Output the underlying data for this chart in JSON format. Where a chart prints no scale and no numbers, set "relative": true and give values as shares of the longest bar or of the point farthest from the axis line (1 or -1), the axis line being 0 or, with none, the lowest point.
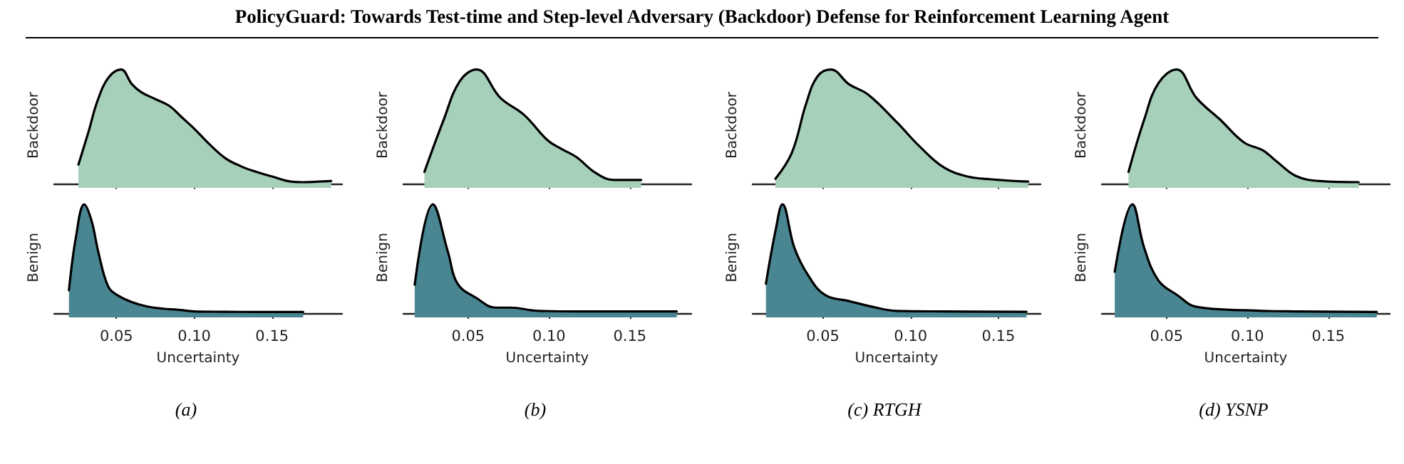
{
  "chart_data": [
    {
      "type": "area",
      "title": "PolicyGuard: Towards Test-time and Step-level Adversary (Backdoor) Defense for Reinforcement Learning Agent",
      "ylabel": "Backdoor",
      "relative": true,
      "tick_labels": false,
      "xlim": [
        0.01,
        0.195
      ],
      "xticks": [
        {
          "value": 0.05,
          "label": null
        },
        {
          "value": 0.1,
          "label": null
        },
        {
          "value": 0.15,
          "label": null
        }
      ],
      "series": [
        {
          "color": "#a6d0b9",
          "x": [
            0.0256,
            0.032,
            0.038,
            0.045,
            0.053,
            0.06,
            0.066,
            0.075,
            0.084,
            0.092,
            0.1,
            0.11,
            0.12,
            0.13,
            0.14,
            0.15,
            0.16,
            0.17,
            0.18,
            0.188
          ],
          "values": [
            0.165,
            0.45,
            0.73,
            0.93,
            1.0,
            0.87,
            0.8,
            0.74,
            0.68,
            0.58,
            0.48,
            0.34,
            0.22,
            0.15,
            0.1,
            0.06,
            0.02,
            0.01,
            0.015,
            0.02
          ]
        }
      ]
    },
    {
      "type": "area",
      "ylabel": "Benign",
      "xlabel": "Uncertainty",
      "relative": true,
      "tick_labels": "x",
      "annotations": [
        "(a)"
      ],
      "xlim": [
        0.01,
        0.195
      ],
      "xticks": [
        {
          "value": 0.05,
          "label": "0.05"
        },
        {
          "value": 0.1,
          "label": "0.10"
        },
        {
          "value": 0.15,
          "label": "0.15"
        }
      ],
      "series": [
        {
          "color": "#4a8592",
          "x": [
            0.0195,
            0.024,
            0.0293,
            0.034,
            0.0384,
            0.0445,
            0.05,
            0.06,
            0.07,
            0.08,
            0.09,
            0.1,
            0.12,
            0.14,
            0.17
          ],
          "values": [
            0.21,
            0.7,
            1.0,
            0.85,
            0.56,
            0.25,
            0.17,
            0.1,
            0.06,
            0.04,
            0.03,
            0.015,
            0.012,
            0.01,
            0.01
          ]
        }
      ]
    },
    {
      "type": "area",
      "ylabel": "Backdoor",
      "relative": true,
      "tick_labels": false,
      "xlim": [
        0.01,
        0.188
      ],
      "xticks": [
        {
          "value": 0.05,
          "label": null
        },
        {
          "value": 0.1,
          "label": null
        },
        {
          "value": 0.15,
          "label": null
        }
      ],
      "series": [
        {
          "color": "#a6d0b9",
          "x": [
            0.023,
            0.0347,
            0.045,
            0.0553,
            0.07,
            0.0847,
            0.099,
            0.108,
            0.117,
            0.129,
            0.14,
            0.157
          ],
          "values": [
            0.1,
            0.55,
            0.9,
            1.0,
            0.75,
            0.6,
            0.38,
            0.3,
            0.23,
            0.09,
            0.03,
            0.03
          ]
        }
      ]
    },
    {
      "type": "area",
      "ylabel": "Benign",
      "xlabel": "Uncertainty",
      "relative": true,
      "tick_labels": "x",
      "annotations": [
        "(b)"
      ],
      "xlim": [
        0.01,
        0.188
      ],
      "xticks": [
        {
          "value": 0.05,
          "label": "0.05"
        },
        {
          "value": 0.1,
          "label": "0.10"
        },
        {
          "value": 0.15,
          "label": "0.15"
        }
      ],
      "series": [
        {
          "color": "#4a8592",
          "x": [
            0.017,
            0.0282,
            0.0376,
            0.0435,
            0.055,
            0.067,
            0.076,
            0.0935,
            0.12,
            0.15,
            0.179
          ],
          "values": [
            0.26,
            1.0,
            0.56,
            0.27,
            0.14,
            0.05,
            0.05,
            0.02,
            0.015,
            0.015,
            0.015
          ]
        }
      ]
    },
    {
      "type": "area",
      "ylabel": "Backdoor",
      "relative": true,
      "tick_labels": false,
      "xlim": [
        0.01,
        0.174
      ],
      "xticks": [
        {
          "value": 0.05,
          "label": null
        },
        {
          "value": 0.1,
          "label": null
        },
        {
          "value": 0.15,
          "label": null
        }
      ],
      "series": [
        {
          "color": "#a6d0b9",
          "x": [
            0.023,
            0.0324,
            0.0405,
            0.047,
            0.0546,
            0.0649,
            0.0757,
            0.0919,
            0.1054,
            0.1189,
            0.1324,
            0.146,
            0.167
          ],
          "values": [
            0.04,
            0.27,
            0.7,
            0.94,
            1.0,
            0.87,
            0.78,
            0.54,
            0.32,
            0.14,
            0.06,
            0.035,
            0.015
          ]
        }
      ]
    },
    {
      "type": "area",
      "ylabel": "Benign",
      "xlabel": "Uncertainty",
      "relative": true,
      "tick_labels": "x",
      "annotations": [
        "(c) RTGH"
      ],
      "xlim": [
        0.01,
        0.174
      ],
      "xticks": [
        {
          "value": 0.05,
          "label": "0.05"
        },
        {
          "value": 0.1,
          "label": "0.10"
        },
        {
          "value": 0.15,
          "label": "0.15"
        }
      ],
      "series": [
        {
          "color": "#4a8592",
          "x": [
            0.0176,
            0.0232,
            0.027,
            0.0338,
            0.0419,
            0.0514,
            0.0649,
            0.0784,
            0.0919,
            0.12,
            0.166
          ],
          "values": [
            0.27,
            0.77,
            1.0,
            0.6,
            0.34,
            0.165,
            0.11,
            0.057,
            0.02,
            0.015,
            0.012
          ]
        }
      ]
    },
    {
      "type": "area",
      "ylabel": "Backdoor",
      "relative": true,
      "tick_labels": false,
      "xlim": [
        0.01,
        0.188
      ],
      "xticks": [
        {
          "value": 0.05,
          "label": null
        },
        {
          "value": 0.1,
          "label": null
        },
        {
          "value": 0.15,
          "label": null
        }
      ],
      "series": [
        {
          "color": "#a6d0b9",
          "x": [
            0.0265,
            0.0362,
            0.045,
            0.0562,
            0.0685,
            0.0831,
            0.0978,
            0.1095,
            0.1183,
            0.13,
            0.1447,
            0.1688
          ],
          "values": [
            0.1,
            0.56,
            0.88,
            1.0,
            0.75,
            0.56,
            0.36,
            0.29,
            0.19,
            0.065,
            0.02,
            0.01
          ]
        }
      ]
    },
    {
      "type": "area",
      "ylabel": "Benign",
      "xlabel": "Uncertainty",
      "relative": true,
      "tick_labels": "x",
      "annotations": [
        "(d) YSNP"
      ],
      "xlim": [
        0.01,
        0.188
      ],
      "xticks": [
        {
          "value": 0.05,
          "label": "0.05"
        },
        {
          "value": 0.1,
          "label": "0.10"
        },
        {
          "value": 0.15,
          "label": "0.15"
        }
      ],
      "series": [
        {
          "color": "#4a8592",
          "x": [
            0.018,
            0.0289,
            0.0362,
            0.045,
            0.0567,
            0.0685,
            0.098,
            0.13,
            0.18
          ],
          "values": [
            0.38,
            1.0,
            0.6,
            0.3,
            0.165,
            0.057,
            0.026,
            0.015,
            0.01
          ]
        }
      ]
    }
  ]
}
